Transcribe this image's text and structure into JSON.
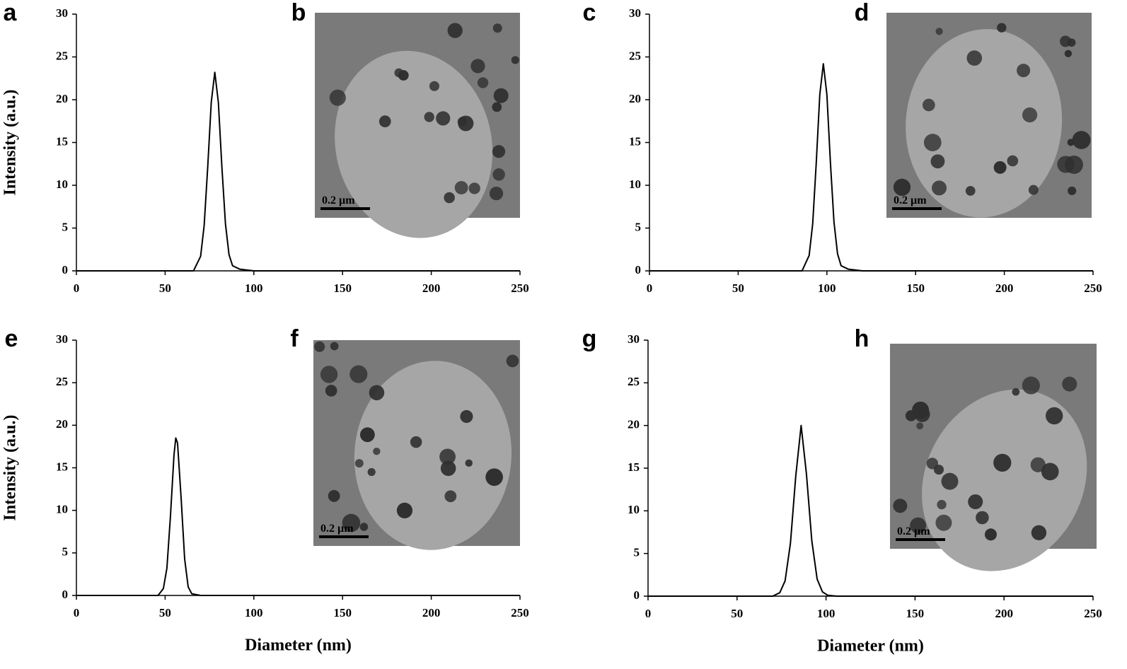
{
  "chart_data": [
    {
      "type": "line",
      "panel_label": "a",
      "ylabel": "Intensity (a.u.)",
      "inset": {
        "label": "b",
        "scale_bar": "0.2 µm"
      },
      "x": [
        0,
        66,
        70,
        72,
        74,
        76,
        78,
        80,
        82,
        84,
        86,
        88,
        92,
        100,
        250
      ],
      "values": [
        0,
        0,
        1.7,
        5.3,
        12.1,
        19.7,
        23.2,
        19.7,
        12.1,
        5.5,
        1.9,
        0.6,
        0.2,
        0,
        0
      ],
      "color": "#000000",
      "xlim": [
        0,
        250
      ],
      "ylim": [
        0,
        30
      ],
      "xticks": [
        0,
        50,
        100,
        150,
        200,
        250
      ],
      "yticks": [
        0,
        5,
        10,
        15,
        20,
        25,
        30
      ]
    },
    {
      "type": "line",
      "panel_label": "c",
      "inset": {
        "label": "d",
        "scale_bar": "0.2 µm"
      },
      "x": [
        0,
        86,
        90,
        92,
        94,
        96,
        98,
        100,
        102,
        104,
        106,
        108,
        112,
        120,
        250
      ],
      "values": [
        0,
        0,
        1.8,
        5.5,
        12.6,
        20.6,
        24.2,
        20.6,
        12.6,
        5.7,
        2.0,
        0.6,
        0.2,
        0,
        0
      ],
      "color": "#000000",
      "xlim": [
        0,
        250
      ],
      "ylim": [
        0,
        30
      ],
      "xticks": [
        0,
        50,
        100,
        150,
        200,
        250
      ],
      "yticks": [
        0,
        5,
        10,
        15,
        20,
        25,
        30
      ]
    },
    {
      "type": "line",
      "panel_label": "e",
      "ylabel": "Intensity (a.u.)",
      "xlabel": "Diameter (nm)",
      "inset": {
        "label": "f",
        "scale_bar": "0.2 µm"
      },
      "x": [
        0,
        46,
        49,
        51,
        53,
        55,
        56,
        57,
        59,
        61,
        63,
        65,
        70,
        250
      ],
      "values": [
        0,
        0,
        0.8,
        3.2,
        9.3,
        16.5,
        18.5,
        17.9,
        11.5,
        4.3,
        1.0,
        0.2,
        0,
        0
      ],
      "color": "#000000",
      "xlim": [
        0,
        250
      ],
      "ylim": [
        0,
        30
      ],
      "xticks": [
        0,
        50,
        100,
        150,
        200,
        250
      ],
      "yticks": [
        0,
        5,
        10,
        15,
        20,
        25,
        30
      ]
    },
    {
      "type": "line",
      "panel_label": "g",
      "xlabel": "Diameter (nm)",
      "inset": {
        "label": "h",
        "scale_bar": "0.2 µm"
      },
      "x": [
        0,
        70,
        74,
        77,
        80,
        83,
        86,
        89,
        92,
        95,
        98,
        101,
        106,
        250
      ],
      "values": [
        0,
        0,
        0.4,
        1.8,
        6.2,
        14.1,
        20.0,
        14.3,
        6.5,
        2.0,
        0.5,
        0.1,
        0,
        0
      ],
      "color": "#000000",
      "xlim": [
        0,
        250
      ],
      "ylim": [
        0,
        30
      ],
      "xticks": [
        0,
        50,
        100,
        150,
        200,
        250
      ],
      "yticks": [
        0,
        5,
        10,
        15,
        20,
        25,
        30
      ]
    }
  ]
}
